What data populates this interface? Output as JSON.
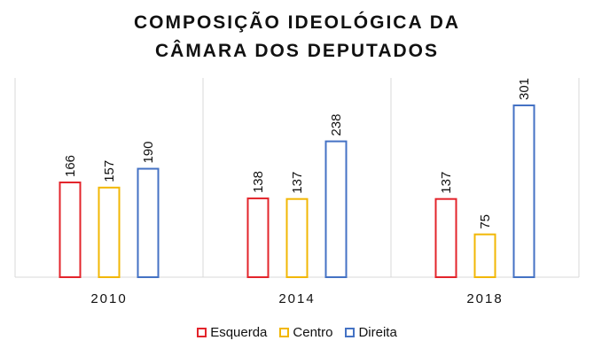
{
  "chart_data": {
    "type": "bar",
    "title_lines": [
      "COMPOSIÇÃO IDEOLÓGICA DA",
      "CÂMARA DOS DEPUTADOS"
    ],
    "categories": [
      "2010",
      "2014",
      "2018"
    ],
    "series": [
      {
        "name": "Esquerda",
        "color": "#e3242b",
        "values": [
          166,
          138,
          137
        ]
      },
      {
        "name": "Centro",
        "color": "#f2b705",
        "values": [
          157,
          137,
          75
        ]
      },
      {
        "name": "Direita",
        "color": "#4472c4",
        "values": [
          190,
          238,
          301
        ]
      }
    ],
    "ylim": [
      0,
      330
    ],
    "grid": "vertical separators",
    "legend": "bottom"
  }
}
